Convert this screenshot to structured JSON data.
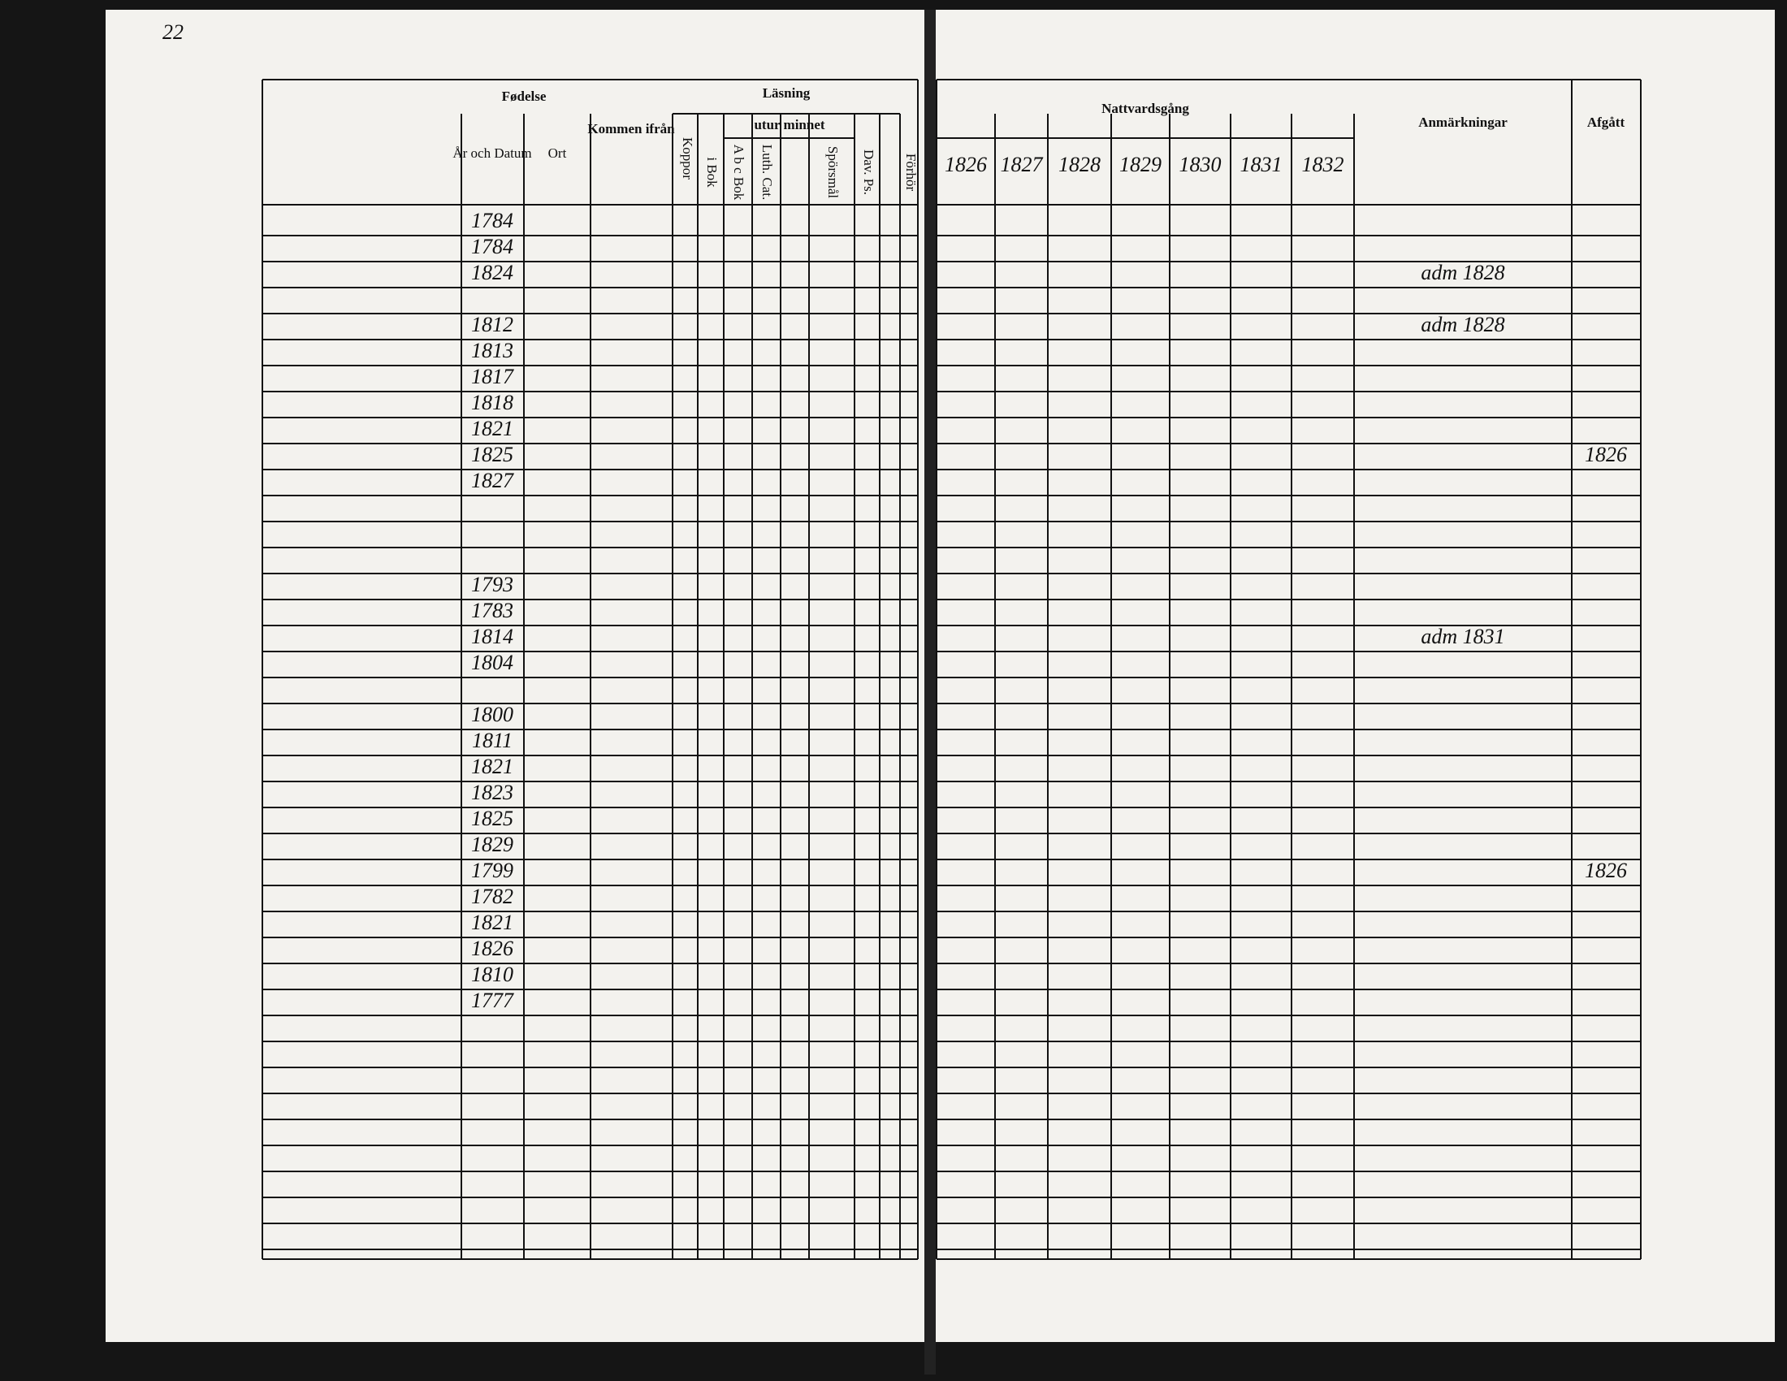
{
  "page_number": "22",
  "left_header": {
    "birth": "Fødelse",
    "birth_date": "År och Datum",
    "birth_place": "Ort",
    "from": "Kommen ifrån",
    "pox": "Koppor",
    "reading": "Läsning",
    "by_heart": "utur minnet",
    "in_book": "i Bok",
    "abc": "A b c Bok",
    "cat": "Luth. Cat.",
    "questions": "Spörsmål",
    "psalms": "Dav. Ps.",
    "hearing": "Förhör"
  },
  "right_header": {
    "communion": "Nattvardsgång",
    "years": [
      "1826",
      "1827",
      "1828",
      "1829",
      "1830",
      "1831",
      "1832"
    ],
    "remarks": "Anmärkningar",
    "departed": "Afgått"
  },
  "households": [
    [
      {
        "date": "1784"
      },
      {
        "date": "1784"
      },
      {
        "date": "1824",
        "remark": "adm 1828"
      }
    ],
    [
      {
        "date": "1812",
        "remark": "adm 1828"
      },
      {
        "date": "1813"
      },
      {
        "date": "1817"
      },
      {
        "date": "1818"
      },
      {
        "date": "1821"
      },
      {
        "date": "1825",
        "departed": "1826"
      },
      {
        "date": "1827"
      }
    ],
    [
      {
        "date": "1793"
      },
      {
        "date": "1783"
      },
      {
        "date": "1814",
        "remark": "adm 1831"
      },
      {
        "date": "1804"
      }
    ],
    [
      {
        "date": "1800"
      },
      {
        "date": "1811"
      },
      {
        "date": "1821"
      },
      {
        "date": "1823"
      },
      {
        "date": "1825"
      },
      {
        "date": "1829"
      },
      {
        "date": "1799",
        "departed": "1826"
      },
      {
        "date": "1782"
      },
      {
        "date": "1821"
      },
      {
        "date": "1826"
      },
      {
        "date": "1810"
      },
      {
        "date": "1777"
      }
    ]
  ]
}
